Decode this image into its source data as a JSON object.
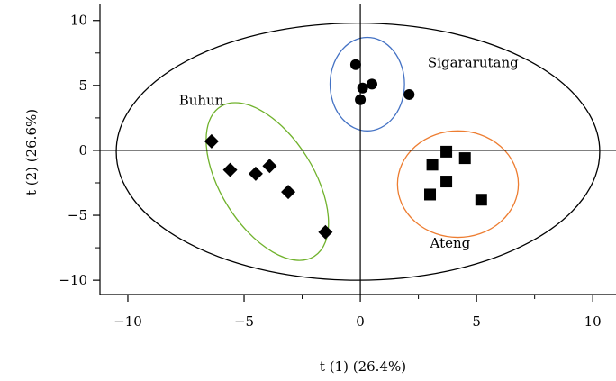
{
  "chart_data": {
    "type": "scatter",
    "xlabel": "t (1) (26.4%)",
    "ylabel": "t (2) (26.6%)",
    "xlim": [
      -11.2,
      11.0
    ],
    "ylim": [
      -11.1,
      11.3
    ],
    "xticks": [
      -10,
      -5,
      0,
      5,
      10
    ],
    "yticks": [
      10,
      5,
      0,
      -5,
      -10
    ],
    "xtick_labels": [
      "−10",
      "−5",
      "0",
      "5",
      "10"
    ],
    "ytick_labels": [
      "10",
      "5",
      "0",
      "−5",
      "−10"
    ],
    "grid": false,
    "series": [
      {
        "name": "Sigararutang",
        "marker": "circle",
        "points": [
          {
            "x": -0.2,
            "y": 6.6
          },
          {
            "x": 0.1,
            "y": 4.8
          },
          {
            "x": 0.5,
            "y": 5.1
          },
          {
            "x": 0.0,
            "y": 3.9
          },
          {
            "x": 2.1,
            "y": 4.3
          }
        ]
      },
      {
        "name": "Buhun",
        "marker": "diamond",
        "points": [
          {
            "x": -6.4,
            "y": 0.7
          },
          {
            "x": -5.6,
            "y": -1.5
          },
          {
            "x": -4.5,
            "y": -1.8
          },
          {
            "x": -3.9,
            "y": -1.2
          },
          {
            "x": -3.1,
            "y": -3.2
          },
          {
            "x": -1.5,
            "y": -6.3
          }
        ]
      },
      {
        "name": "Ateng",
        "marker": "square",
        "points": [
          {
            "x": 3.7,
            "y": -0.1
          },
          {
            "x": 4.5,
            "y": -0.6
          },
          {
            "x": 3.1,
            "y": -1.1
          },
          {
            "x": 3.7,
            "y": -2.4
          },
          {
            "x": 3.0,
            "y": -3.4
          },
          {
            "x": 5.2,
            "y": -3.8
          }
        ]
      }
    ],
    "ellipses": [
      {
        "name": "overall",
        "color": "#000000",
        "cx": -0.1,
        "cy": -0.1,
        "rx": 10.4,
        "ry": 9.9,
        "angle": 0
      },
      {
        "name": "Sigararutang",
        "color": "#4472c4",
        "cx": 0.3,
        "cy": 5.1,
        "rx": 1.6,
        "ry": 3.6,
        "angle": 0
      },
      {
        "name": "Buhun",
        "color": "#70b22c",
        "cx": -4.0,
        "cy": -2.4,
        "rx": 2.0,
        "ry": 6.8,
        "angle": 32
      },
      {
        "name": "Ateng",
        "color": "#ed7d31",
        "cx": 4.2,
        "cy": -2.6,
        "rx": 2.6,
        "ry": 4.1,
        "angle": 0
      }
    ],
    "annotations": [
      {
        "text": "Sigararutang",
        "x": 2.9,
        "y": 6.4
      },
      {
        "text": "Buhun",
        "x": -7.8,
        "y": 3.5
      },
      {
        "text": "Ateng",
        "x": 3.0,
        "y": -7.5
      }
    ]
  }
}
